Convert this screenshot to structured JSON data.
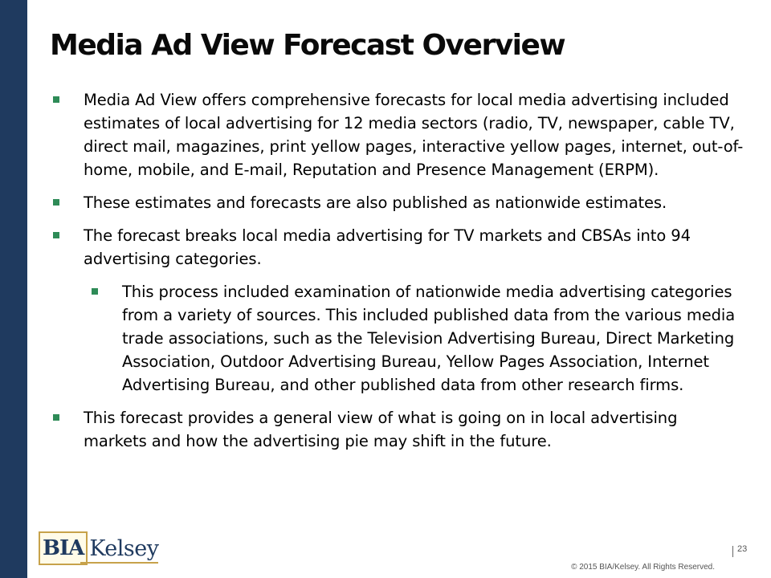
{
  "slide": {
    "title": "Media Ad View Forecast Overview",
    "bullets": [
      {
        "level": 1,
        "text": "Media Ad View offers comprehensive forecasts for local media advertising included estimates of local advertising for 12 media sectors (radio, TV, newspaper, cable TV, direct mail, magazines, print yellow pages, interactive yellow pages, internet, out-of-home, mobile, and E-mail, Reputation and Presence Management (ERPM)."
      },
      {
        "level": 1,
        "text": "These estimates and forecasts are also published as nationwide estimates."
      },
      {
        "level": 1,
        "text": "The forecast breaks local media advertising for TV markets and CBSAs into 94 advertising categories."
      },
      {
        "level": 2,
        "text": "This process included examination of nationwide media advertising categories from a variety of sources. This included published data from the various media trade associations, such as the Television Advertising Bureau, Direct Marketing Association, Outdoor Advertising Bureau, Yellow Pages Association, Internet Advertising Bureau, and other published data from other research firms."
      },
      {
        "level": 1,
        "text": "This forecast provides a general view of what is going on in local advertising markets and how the advertising pie may shift in the future."
      }
    ]
  },
  "footer": {
    "logo_part1": "BIA",
    "logo_part2": "Kelsey",
    "page_number": "23",
    "copyright": "© 2015 BIA/Kelsey. All Rights Reserved."
  },
  "colors": {
    "sidebar": "#1f3a5f",
    "bullet_marker": "#2e8b57",
    "logo_gold": "#c7a24a"
  }
}
